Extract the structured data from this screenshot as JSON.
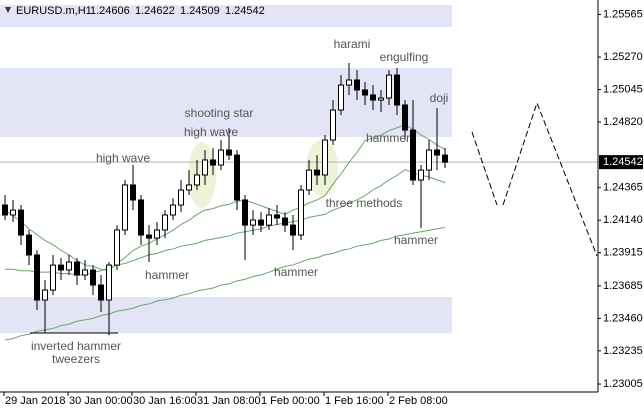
{
  "chart_data": {
    "type": "candlestick",
    "symbol": "EURUSD.m,H1",
    "header_values": [
      1.24606,
      1.24622,
      1.24509,
      1.24542
    ],
    "current_price": 1.24542,
    "categories": [
      "29 Jan 2018",
      null,
      null,
      null,
      null,
      null,
      null,
      null,
      "30 Jan 00:00",
      null,
      null,
      null,
      null,
      null,
      null,
      null,
      "30 Jan 16:00",
      null,
      null,
      null,
      null,
      null,
      null,
      null,
      "31 Jan 08:00",
      null,
      null,
      null,
      null,
      null,
      null,
      null,
      "1 Feb 00:00",
      null,
      null,
      null,
      null,
      null,
      null,
      null,
      "1 Feb 16:00",
      null,
      null,
      null,
      null,
      null,
      null,
      null,
      "2 Feb 08:00",
      null,
      null,
      null,
      null,
      null,
      null,
      null
    ],
    "open": [
      1.24245,
      1.24176,
      1.2421,
      1.24037,
      1.23899,
      1.23587,
      1.23656,
      1.23829,
      1.23795,
      1.2385,
      1.2376,
      1.23795,
      1.23691,
      1.23587,
      1.23829,
      1.24072,
      1.24384,
      1.2428,
      1.24037,
      1.24016,
      1.24072,
      1.24176,
      1.24245,
      1.24349,
      1.24384,
      1.24453,
      1.24557,
      1.24522,
      1.24626,
      1.24591,
      1.2428,
      1.24106,
      1.24141,
      1.24106,
      1.24176,
      1.24155,
      1.24106,
      1.24037,
      1.24349,
      1.24487,
      1.24453,
      1.24695,
      1.24903,
      1.25076,
      1.25111,
      1.25042,
      1.25007,
      1.24972,
      1.24986,
      1.25145,
      1.24938,
      1.24764,
      1.24418,
      1.24487,
      1.24626,
      1.24591
    ],
    "high": [
      1.24314,
      1.2428,
      1.24245,
      1.24072,
      1.23933,
      1.23725,
      1.23899,
      1.23878,
      1.23899,
      1.23878,
      1.23864,
      1.23829,
      1.2376,
      1.2385,
      1.24106,
      1.24418,
      1.24522,
      1.24314,
      1.24106,
      1.24127,
      1.2421,
      1.24293,
      1.24418,
      1.24487,
      1.24557,
      1.24626,
      1.2464,
      1.24695,
      1.24778,
      1.24626,
      1.24314,
      1.2421,
      1.24196,
      1.24224,
      1.24245,
      1.24196,
      1.24176,
      1.24384,
      1.24557,
      1.24591,
      1.2473,
      1.24972,
      1.25145,
      1.25229,
      1.2518,
      1.25097,
      1.25076,
      1.25042,
      1.2518,
      1.25194,
      1.24972,
      1.24972,
      1.24522,
      1.24695,
      1.24917,
      1.2464
    ],
    "low": [
      1.24141,
      1.24127,
      1.23968,
      1.23829,
      1.23518,
      1.23358,
      1.23621,
      1.23725,
      1.2376,
      1.23691,
      1.23725,
      1.23621,
      1.23504,
      1.23344,
      1.23795,
      1.24037,
      1.2421,
      1.23968,
      1.2385,
      1.23968,
      1.24016,
      1.24141,
      1.24196,
      1.24314,
      1.24349,
      1.24384,
      1.24453,
      1.24487,
      1.24557,
      1.2421,
      1.23864,
      1.24037,
      1.24058,
      1.24072,
      1.24106,
      1.24058,
      1.23933,
      1.24003,
      1.24314,
      1.24384,
      1.24384,
      1.24661,
      1.24868,
      1.25007,
      1.24972,
      1.24938,
      1.24903,
      1.24889,
      1.24938,
      1.24868,
      1.24695,
      1.24384,
      1.24086,
      1.24418,
      1.24487,
      1.24501
    ],
    "close": [
      1.24176,
      1.2421,
      1.24037,
      1.23899,
      1.23587,
      1.23656,
      1.23829,
      1.23795,
      1.2385,
      1.2376,
      1.23795,
      1.23691,
      1.23587,
      1.23829,
      1.24072,
      1.24384,
      1.2428,
      1.24037,
      1.24016,
      1.24072,
      1.24176,
      1.24245,
      1.24349,
      1.24384,
      1.24453,
      1.24557,
      1.24522,
      1.24626,
      1.24591,
      1.2428,
      1.24106,
      1.24141,
      1.24106,
      1.24176,
      1.24155,
      1.24106,
      1.24037,
      1.24349,
      1.24487,
      1.24453,
      1.24695,
      1.24903,
      1.25076,
      1.25111,
      1.25042,
      1.25007,
      1.24972,
      1.24986,
      1.25145,
      1.24938,
      1.24764,
      1.24418,
      1.24487,
      1.24626,
      1.24591,
      1.24542
    ],
    "up_color": "#ffffff",
    "down_color": "#000000",
    "series": [
      {
        "color": "#6aa56a",
        "values": [
          1.2421,
          1.2417,
          1.2413,
          1.2408,
          1.2404,
          1.24,
          1.2397,
          1.2393,
          1.239,
          1.2386,
          1.2383,
          1.2382,
          1.238,
          1.2379,
          1.2384,
          1.2388,
          1.2393,
          1.2396,
          1.2398,
          1.2401,
          1.2404,
          1.2407,
          1.2411,
          1.2414,
          1.2418,
          1.2421,
          1.2422,
          1.2424,
          1.2425,
          1.2427,
          1.2428,
          1.2426,
          1.2424,
          1.2422,
          1.242,
          1.2418,
          1.2421,
          1.2423,
          1.2426,
          1.2428,
          1.2431,
          1.2439,
          1.2446,
          1.2454,
          1.2461,
          1.2469,
          1.2471,
          1.2473,
          1.2476,
          1.2478,
          1.248,
          1.2477,
          1.2473,
          1.247,
          1.2466,
          1.2463
        ]
      },
      {
        "color": "#6aa56a",
        "values": [
          1.238,
          1.238,
          1.2379,
          1.2379,
          1.2378,
          1.2378,
          1.2378,
          1.2377,
          1.2377,
          1.2376,
          1.2376,
          1.2378,
          1.2379,
          1.2381,
          1.2383,
          1.2384,
          1.2386,
          1.2388,
          1.239,
          1.2391,
          1.2393,
          1.2394,
          1.2396,
          1.2397,
          1.2398,
          1.24,
          1.2401,
          1.2402,
          1.2403,
          1.2405,
          1.2406,
          1.2407,
          1.2408,
          1.241,
          1.2411,
          1.2412,
          1.2413,
          1.2414,
          1.2416,
          1.2417,
          1.2418,
          1.2421,
          1.2423,
          1.2426,
          1.2428,
          1.2431,
          1.2435,
          1.2438,
          1.2442,
          1.2445,
          1.2449,
          1.2447,
          1.2445,
          1.2444,
          1.2442,
          1.244
        ]
      },
      {
        "color": "#6aa56a",
        "values": [
          1.2331,
          1.2332,
          1.2334,
          1.2335,
          1.2337,
          1.2338,
          1.2339,
          1.2341,
          1.2342,
          1.2344,
          1.2345,
          1.2346,
          1.2348,
          1.2349,
          1.2351,
          1.2352,
          1.2353,
          1.2355,
          1.2356,
          1.2358,
          1.2359,
          1.236,
          1.2362,
          1.2363,
          1.2365,
          1.2366,
          1.2367,
          1.2369,
          1.237,
          1.2372,
          1.2373,
          1.2375,
          1.2376,
          1.2378,
          1.238,
          1.2382,
          1.2383,
          1.2385,
          1.2387,
          1.2388,
          1.239,
          1.2391,
          1.2393,
          1.2394,
          1.2396,
          1.2397,
          1.2398,
          1.24,
          1.2401,
          1.2403,
          1.2404,
          1.2405,
          1.2406,
          1.2407,
          1.2408,
          1.2409
        ]
      }
    ],
    "zones": [
      [
        1.2563,
        1.25478
      ],
      [
        1.25194,
        1.24716
      ],
      [
        1.23608,
        1.23358
      ]
    ],
    "zone_color": "#e4e4f7",
    "annotations": [
      "harami",
      "engulfing",
      "doji",
      "shooting star",
      "high wave",
      "high wave",
      "hammer",
      "three methods",
      "hammer",
      "hammer",
      "hammer",
      "inverted hammer",
      "tweezers"
    ],
    "ylim": [
      1.2295,
      1.25665
    ],
    "yticks": [
      1.25565,
      {
        "value": 1.2527,
        "label": "1.25270"
      },
      1.25045,
      {
        "value": 1.2482,
        "label": "1.24820"
      },
      1.24365,
      {
        "value": 1.2414,
        "label": "1.24140"
      },
      1.23915,
      1.23685,
      {
        "value": 1.2346,
        "label": "1.23460"
      },
      1.23235,
      1.23005
    ]
  }
}
